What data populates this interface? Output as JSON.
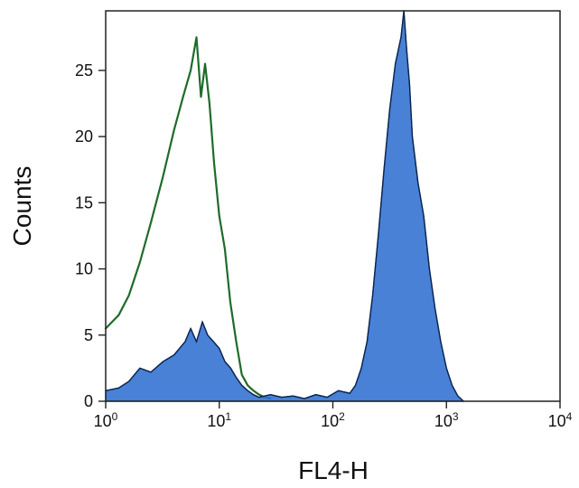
{
  "chart_data": {
    "type": "area",
    "xlabel": "FL4-H",
    "ylabel": "Counts",
    "xscale": "log",
    "xlim": [
      1,
      10000
    ],
    "ylim": [
      0,
      29.5
    ],
    "grid": false,
    "x_ticks": [
      {
        "value": 1,
        "base": "10",
        "exp": "0"
      },
      {
        "value": 10,
        "base": "10",
        "exp": "1"
      },
      {
        "value": 100,
        "base": "10",
        "exp": "2"
      },
      {
        "value": 1000,
        "base": "10",
        "exp": "3"
      },
      {
        "value": 10000,
        "base": "10",
        "exp": "4"
      }
    ],
    "y_ticks": [
      {
        "value": 0,
        "label": "0"
      },
      {
        "value": 5,
        "label": "5"
      },
      {
        "value": 10,
        "label": "10"
      },
      {
        "value": 15,
        "label": "15"
      },
      {
        "value": 20,
        "label": "20"
      },
      {
        "value": 25,
        "label": "25"
      }
    ],
    "series": [
      {
        "style": "outline",
        "color": "#1f6b2a",
        "x": [
          1.0,
          1.3,
          1.6,
          2.0,
          2.5,
          3.2,
          4.0,
          4.8,
          5.6,
          6.3,
          6.9,
          7.5,
          8.2,
          9.0,
          10.0,
          11.2,
          12.5,
          14.1,
          15.8,
          17.8,
          20.0,
          22.4,
          25.1,
          28.2
        ],
        "y": [
          5.5,
          6.5,
          8.0,
          10.5,
          13.5,
          17.0,
          20.5,
          23.0,
          25.0,
          27.5,
          23.0,
          25.5,
          22.5,
          18.0,
          14.0,
          11.5,
          7.5,
          4.5,
          2.0,
          1.2,
          0.8,
          0.5,
          0.3,
          0.2
        ]
      },
      {
        "style": "filled",
        "color": "#2f6fd0",
        "x": [
          1.0,
          1.3,
          1.6,
          2.0,
          2.5,
          3.2,
          4.0,
          5.0,
          5.6,
          6.3,
          7.1,
          7.9,
          8.9,
          10.0,
          11.2,
          12.6,
          14.1,
          15.8,
          17.8,
          20.0,
          22.4,
          28.2,
          35.5,
          44.7,
          56.2,
          70.8,
          89.1,
          112,
          141,
          158,
          178,
          200,
          224,
          251,
          282,
          316,
          355,
          398,
          422,
          447,
          473,
          501,
          562,
          631,
          708,
          794,
          891,
          1000,
          1122,
          1259,
          1413
        ],
        "y": [
          0.8,
          1.0,
          1.5,
          2.5,
          2.2,
          3.0,
          3.5,
          4.5,
          5.5,
          4.5,
          6.0,
          5.0,
          4.5,
          4.0,
          3.0,
          2.5,
          1.8,
          1.2,
          0.8,
          0.5,
          0.3,
          0.5,
          0.3,
          0.4,
          0.2,
          0.5,
          0.3,
          0.8,
          0.6,
          1.2,
          2.5,
          4.5,
          8.0,
          12.5,
          17.5,
          22.0,
          25.5,
          27.5,
          29.5,
          26.5,
          24.0,
          20.0,
          16.5,
          14.0,
          10.0,
          7.0,
          4.5,
          2.5,
          1.2,
          0.4,
          0.0
        ]
      }
    ]
  }
}
